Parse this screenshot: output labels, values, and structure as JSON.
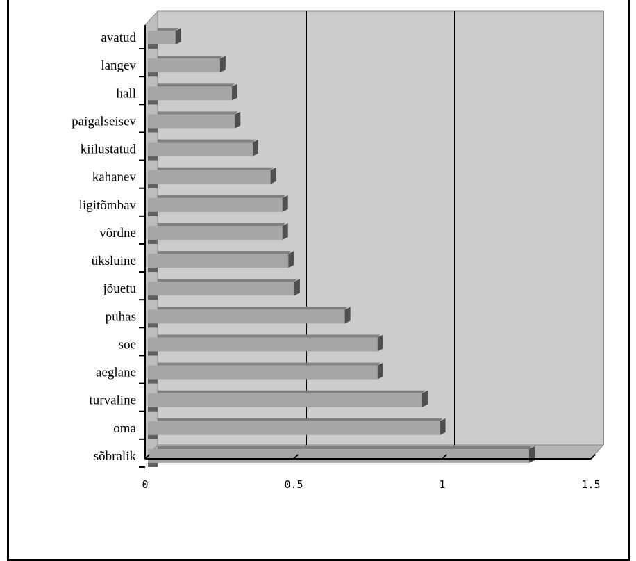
{
  "chart_data": {
    "type": "bar",
    "orientation": "horizontal",
    "title": "",
    "xlabel": "",
    "ylabel": "",
    "categories": [
      "avatud",
      "langev",
      "hall",
      "paigalseisev",
      "kiilustatud",
      "kahanev",
      "ligitõmbav",
      "võrdne",
      "üksluine",
      "jõuetu",
      "puhas",
      "soe",
      "aeglane",
      "turvaline",
      "oma",
      "sõbralik"
    ],
    "values": [
      0.06,
      0.21,
      0.25,
      0.26,
      0.32,
      0.38,
      0.42,
      0.42,
      0.44,
      0.46,
      0.63,
      0.74,
      0.74,
      0.89,
      0.95,
      1.25
    ],
    "xlim": [
      0,
      1.5
    ],
    "x_ticks": [
      "0",
      "0.5",
      "1",
      "1.5"
    ],
    "vertical_gridlines": true,
    "legend": "none",
    "colors": {
      "plot_background": "#cccccc",
      "bar_face": "#a6a6a6",
      "bar_top": "#7f7f7f",
      "bar_end": "#4f4f4f",
      "bar_shadow": "#606060",
      "gridline": "#000000",
      "frame": "#000000"
    }
  }
}
